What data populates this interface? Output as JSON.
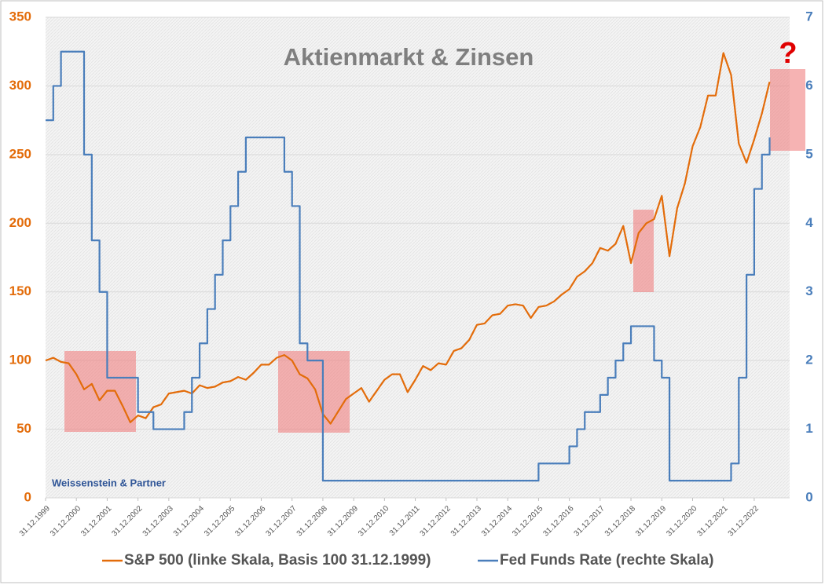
{
  "chart_data": {
    "type": "line",
    "title": "Aktienmarkt & Zinsen",
    "annotations": [
      "Weissenstein & Partner",
      "?"
    ],
    "xlim": [
      2000,
      2024.15
    ],
    "xticks": [
      {
        "value": 2000,
        "label": "31.12.1999"
      },
      {
        "value": 2001,
        "label": "31.12.2000"
      },
      {
        "value": 2002,
        "label": "31.12.2001"
      },
      {
        "value": 2003,
        "label": "31.12.2002"
      },
      {
        "value": 2004,
        "label": "31.12.2003"
      },
      {
        "value": 2005,
        "label": "31.12.2004"
      },
      {
        "value": 2006,
        "label": "31.12.2005"
      },
      {
        "value": 2007,
        "label": "31.12.2006"
      },
      {
        "value": 2008,
        "label": "31.12.2007"
      },
      {
        "value": 2009,
        "label": "31.12.2008"
      },
      {
        "value": 2010,
        "label": "31.12.2009"
      },
      {
        "value": 2011,
        "label": "31.12.2010"
      },
      {
        "value": 2012,
        "label": "31.12.2011"
      },
      {
        "value": 2013,
        "label": "31.12.2012"
      },
      {
        "value": 2014,
        "label": "31.12.2013"
      },
      {
        "value": 2015,
        "label": "31.12.2014"
      },
      {
        "value": 2016,
        "label": "31.12.2015"
      },
      {
        "value": 2017,
        "label": "31.12.2016"
      },
      {
        "value": 2018,
        "label": "31.12.2017"
      },
      {
        "value": 2019,
        "label": "31.12.2018"
      },
      {
        "value": 2020,
        "label": "31.12.2019"
      },
      {
        "value": 2021,
        "label": "31.12.2020"
      },
      {
        "value": 2022,
        "label": "31.12.2021"
      },
      {
        "value": 2023,
        "label": "31.12.2022"
      }
    ],
    "ylim": [
      0,
      350
    ],
    "yticks": [
      0,
      50,
      100,
      150,
      200,
      250,
      300,
      350
    ],
    "y2lim": [
      0,
      7
    ],
    "y2ticks": [
      0,
      1,
      2,
      3,
      4,
      5,
      6,
      7
    ],
    "grid": true,
    "legend": "bottom",
    "x": [
      2000,
      2000.25,
      2000.5,
      2000.75,
      2001,
      2001.25,
      2001.5,
      2001.75,
      2002,
      2002.25,
      2002.5,
      2002.75,
      2003,
      2003.25,
      2003.5,
      2003.75,
      2004,
      2004.25,
      2004.5,
      2004.75,
      2005,
      2005.25,
      2005.5,
      2005.75,
      2006,
      2006.25,
      2006.5,
      2006.75,
      2007,
      2007.25,
      2007.5,
      2007.75,
      2008,
      2008.25,
      2008.5,
      2008.75,
      2009,
      2009.25,
      2009.5,
      2009.75,
      2010,
      2010.25,
      2010.5,
      2010.75,
      2011,
      2011.25,
      2011.5,
      2011.75,
      2012,
      2012.25,
      2012.5,
      2012.75,
      2013,
      2013.25,
      2013.5,
      2013.75,
      2014,
      2014.25,
      2014.5,
      2014.75,
      2015,
      2015.25,
      2015.5,
      2015.75,
      2016,
      2016.25,
      2016.5,
      2016.75,
      2017,
      2017.25,
      2017.5,
      2017.75,
      2018,
      2018.25,
      2018.5,
      2018.75,
      2019,
      2019.25,
      2019.5,
      2019.75,
      2020,
      2020.25,
      2020.5,
      2020.75,
      2021,
      2021.25,
      2021.5,
      2021.75,
      2022,
      2022.25,
      2022.5,
      2022.75,
      2023,
      2023.25,
      2023.5
    ],
    "series": [
      {
        "name": "S&P 500 (linke Skala, Basis 100 31.12.1999)",
        "color": "#e36c0a",
        "axis": "y",
        "values": [
          100,
          102,
          99,
          98,
          90,
          79,
          83,
          71,
          78,
          78,
          67,
          55,
          60,
          58,
          66,
          68,
          76,
          77,
          78,
          76,
          82,
          80,
          81,
          84,
          85,
          88,
          86,
          91,
          97,
          97,
          102,
          104,
          100,
          90,
          87,
          79,
          61,
          54,
          63,
          72,
          76,
          80,
          70,
          78,
          86,
          90,
          90,
          77,
          86,
          96,
          93,
          98,
          97,
          107,
          109,
          115,
          126,
          127,
          133,
          134,
          140,
          141,
          140,
          131,
          139,
          140,
          143,
          148,
          152,
          161,
          165,
          171,
          182,
          180,
          185,
          198,
          171,
          193,
          200,
          203,
          220,
          176,
          211,
          229,
          256,
          270,
          293,
          293,
          324,
          308,
          258,
          244,
          261,
          280,
          303
        ]
      },
      {
        "name": "Fed Funds Rate (rechte Skala)",
        "color": "#4a7ebb",
        "axis": "y2",
        "values": [
          5.5,
          6.0,
          6.5,
          6.5,
          6.5,
          5.0,
          3.75,
          3.0,
          1.75,
          1.75,
          1.75,
          1.75,
          1.25,
          1.25,
          1.0,
          1.0,
          1.0,
          1.0,
          1.25,
          1.75,
          2.25,
          2.75,
          3.25,
          3.75,
          4.25,
          4.75,
          5.25,
          5.25,
          5.25,
          5.25,
          5.25,
          4.75,
          4.25,
          2.25,
          2.0,
          2.0,
          0.25,
          0.25,
          0.25,
          0.25,
          0.25,
          0.25,
          0.25,
          0.25,
          0.25,
          0.25,
          0.25,
          0.25,
          0.25,
          0.25,
          0.25,
          0.25,
          0.25,
          0.25,
          0.25,
          0.25,
          0.25,
          0.25,
          0.25,
          0.25,
          0.25,
          0.25,
          0.25,
          0.25,
          0.5,
          0.5,
          0.5,
          0.5,
          0.75,
          1.0,
          1.25,
          1.25,
          1.5,
          1.75,
          2.0,
          2.25,
          2.5,
          2.5,
          2.5,
          2.0,
          1.75,
          0.25,
          0.25,
          0.25,
          0.25,
          0.25,
          0.25,
          0.25,
          0.25,
          0.5,
          1.75,
          3.25,
          4.5,
          5.0,
          5.25
        ]
      }
    ]
  }
}
